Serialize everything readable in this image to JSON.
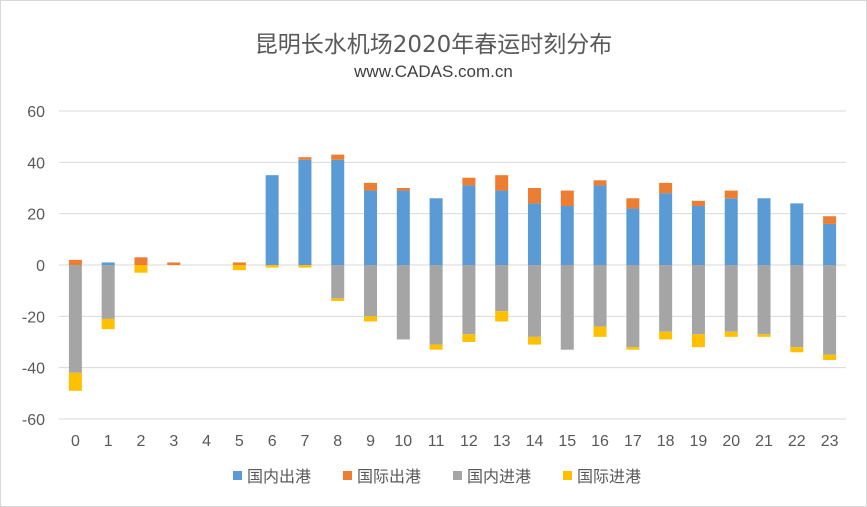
{
  "chart_data": {
    "type": "bar",
    "stacked": true,
    "title": "昆明长水机场2020年春运时刻分布",
    "subtitle": "www.CADAS.com.cn",
    "xlabel": "",
    "ylabel": "",
    "ylim": [
      -60,
      60
    ],
    "yticks": [
      -60,
      -40,
      -20,
      0,
      20,
      40,
      60
    ],
    "grid": true,
    "legend_position": "bottom",
    "categories": [
      "0",
      "1",
      "2",
      "3",
      "4",
      "5",
      "6",
      "7",
      "8",
      "9",
      "10",
      "11",
      "12",
      "13",
      "14",
      "15",
      "16",
      "17",
      "18",
      "19",
      "20",
      "21",
      "22",
      "23"
    ],
    "series": [
      {
        "name": "国内出港",
        "color": "#5B9BD5",
        "values": [
          0,
          1,
          0,
          0,
          0,
          0,
          35,
          41,
          41,
          29,
          29,
          26,
          31,
          29,
          24,
          23,
          31,
          22,
          28,
          23,
          26,
          26,
          24,
          16
        ]
      },
      {
        "name": "国际出港",
        "color": "#ED7D31",
        "values": [
          2,
          0,
          3,
          1,
          0,
          1,
          0,
          1,
          2,
          3,
          1,
          0,
          3,
          6,
          6,
          6,
          2,
          4,
          4,
          2,
          3,
          0,
          0,
          3
        ]
      },
      {
        "name": "国内进港",
        "color": "#A5A5A5",
        "values": [
          -42,
          -21,
          0,
          0,
          0,
          0,
          0,
          0,
          -13,
          -20,
          -29,
          -31,
          -27,
          -18,
          -28,
          -33,
          -24,
          -32,
          -26,
          -27,
          -26,
          -27,
          -32,
          -35
        ]
      },
      {
        "name": "国际进港",
        "color": "#FFC000",
        "values": [
          -7,
          -4,
          -3,
          0,
          0,
          -2,
          -1,
          -1,
          -1,
          -2,
          0,
          -2,
          -3,
          -4,
          -3,
          0,
          -4,
          -1,
          -3,
          -5,
          -2,
          -1,
          -2,
          -2
        ]
      }
    ]
  }
}
